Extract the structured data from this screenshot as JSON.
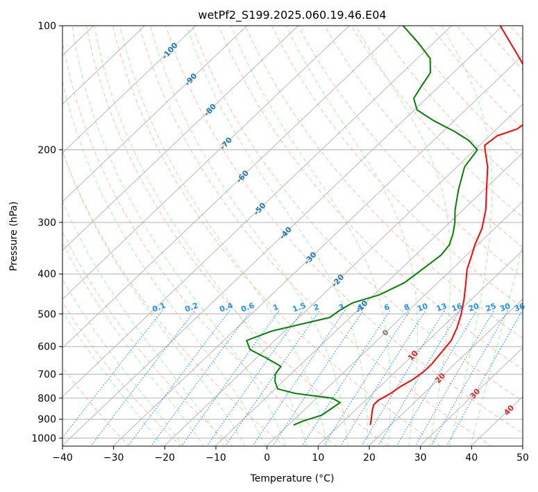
{
  "chart_data": {
    "type": "line",
    "title": "wetPf2_S199.2025.060.19.46.E04",
    "xlabel": "Temperature (°C)",
    "ylabel": "Pressure (hPa)",
    "xlim": [
      -40,
      50
    ],
    "ylim": [
      1050,
      100
    ],
    "y_scale": "log",
    "grid": true,
    "x_ticks": [
      -40,
      -30,
      -20,
      -10,
      0,
      10,
      20,
      30,
      40,
      50
    ],
    "y_ticks": [
      100,
      200,
      300,
      400,
      500,
      600,
      700,
      800,
      900,
      1000
    ],
    "skew_isotherm_labels": [
      -100,
      -90,
      -80,
      -70,
      -60,
      -50,
      -40,
      -30,
      -20,
      -10,
      0,
      10,
      20,
      30,
      40
    ],
    "mixing_ratio_labels": [
      "0.1",
      "0.2",
      "0.4",
      "0.6",
      "1",
      "1.5",
      "2",
      "3",
      "4",
      "6",
      "8",
      "10",
      "13",
      "16",
      "20",
      "25",
      "30",
      "36"
    ],
    "series": [
      {
        "values": [
          {
            "p": 930,
            "t": 16.0
          },
          {
            "p": 900,
            "t": 15.0
          },
          {
            "p": 860,
            "t": 13.5
          },
          {
            "p": 830,
            "t": 12.5
          },
          {
            "p": 810,
            "t": 12.5
          },
          {
            "p": 780,
            "t": 13.5
          },
          {
            "p": 750,
            "t": 14.0
          },
          {
            "p": 720,
            "t": 15.0
          },
          {
            "p": 690,
            "t": 15.5
          },
          {
            "p": 660,
            "t": 15.5
          },
          {
            "p": 620,
            "t": 15.0
          },
          {
            "p": 580,
            "t": 14.5
          },
          {
            "p": 540,
            "t": 13.0
          },
          {
            "p": 500,
            "t": 11.0
          },
          {
            "p": 460,
            "t": 8.5
          },
          {
            "p": 420,
            "t": 5.5
          },
          {
            "p": 390,
            "t": 3.0
          },
          {
            "p": 360,
            "t": 1.0
          },
          {
            "p": 340,
            "t": -0.5
          },
          {
            "p": 310,
            "t": -2.5
          },
          {
            "p": 280,
            "t": -5.5
          },
          {
            "p": 250,
            "t": -9.5
          },
          {
            "p": 220,
            "t": -14.0
          },
          {
            "p": 200,
            "t": -18.0
          },
          {
            "p": 195,
            "t": -19.0
          },
          {
            "p": 185,
            "t": -18.5
          },
          {
            "p": 178,
            "t": -16.0
          },
          {
            "p": 170,
            "t": -15.5
          },
          {
            "p": 160,
            "t": -17.0
          },
          {
            "p": 150,
            "t": -19.0
          },
          {
            "p": 140,
            "t": -22.0
          },
          {
            "p": 130,
            "t": -25.5
          },
          {
            "p": 120,
            "t": -30.0
          },
          {
            "p": 110,
            "t": -35.0
          },
          {
            "p": 100,
            "t": -40.5
          }
        ]
      },
      {
        "values": [
          {
            "p": 930,
            "t": 1.0
          },
          {
            "p": 910,
            "t": 2.0
          },
          {
            "p": 880,
            "t": 4.5
          },
          {
            "p": 850,
            "t": 5.0
          },
          {
            "p": 820,
            "t": 5.5
          },
          {
            "p": 800,
            "t": 3.0
          },
          {
            "p": 780,
            "t": -5.0
          },
          {
            "p": 760,
            "t": -9.5
          },
          {
            "p": 730,
            "t": -11.5
          },
          {
            "p": 700,
            "t": -13.0
          },
          {
            "p": 670,
            "t": -13.5
          },
          {
            "p": 640,
            "t": -18.0
          },
          {
            "p": 610,
            "t": -23.0
          },
          {
            "p": 580,
            "t": -25.5
          },
          {
            "p": 550,
            "t": -22.5
          },
          {
            "p": 510,
            "t": -14.0
          },
          {
            "p": 490,
            "t": -13.5
          },
          {
            "p": 470,
            "t": -12.5
          },
          {
            "p": 450,
            "t": -9.0
          },
          {
            "p": 420,
            "t": -6.5
          },
          {
            "p": 400,
            "t": -6.0
          },
          {
            "p": 380,
            "t": -5.5
          },
          {
            "p": 360,
            "t": -5.0
          },
          {
            "p": 340,
            "t": -5.5
          },
          {
            "p": 320,
            "t": -7.0
          },
          {
            "p": 300,
            "t": -9.0
          },
          {
            "p": 280,
            "t": -11.5
          },
          {
            "p": 250,
            "t": -15.0
          },
          {
            "p": 220,
            "t": -18.5
          },
          {
            "p": 200,
            "t": -19.5
          },
          {
            "p": 190,
            "t": -23.0
          },
          {
            "p": 180,
            "t": -28.0
          },
          {
            "p": 170,
            "t": -34.0
          },
          {
            "p": 160,
            "t": -39.5
          },
          {
            "p": 150,
            "t": -42.5
          },
          {
            "p": 140,
            "t": -43.5
          },
          {
            "p": 130,
            "t": -44.5
          },
          {
            "p": 120,
            "t": -47.5
          },
          {
            "p": 110,
            "t": -53.0
          },
          {
            "p": 100,
            "t": -59.5
          }
        ]
      }
    ]
  },
  "colors": {
    "temperature": "#ff0000",
    "dewpoint": "#008000",
    "dry_adiabat": "#ffa07a",
    "moist_adiabat": "#90ee90",
    "mixing_ratio": "#1e90ff",
    "isotherm_label": "#1f77b4",
    "isotherm_label_warm": "#d62728",
    "grid": "#b0b0b0"
  }
}
